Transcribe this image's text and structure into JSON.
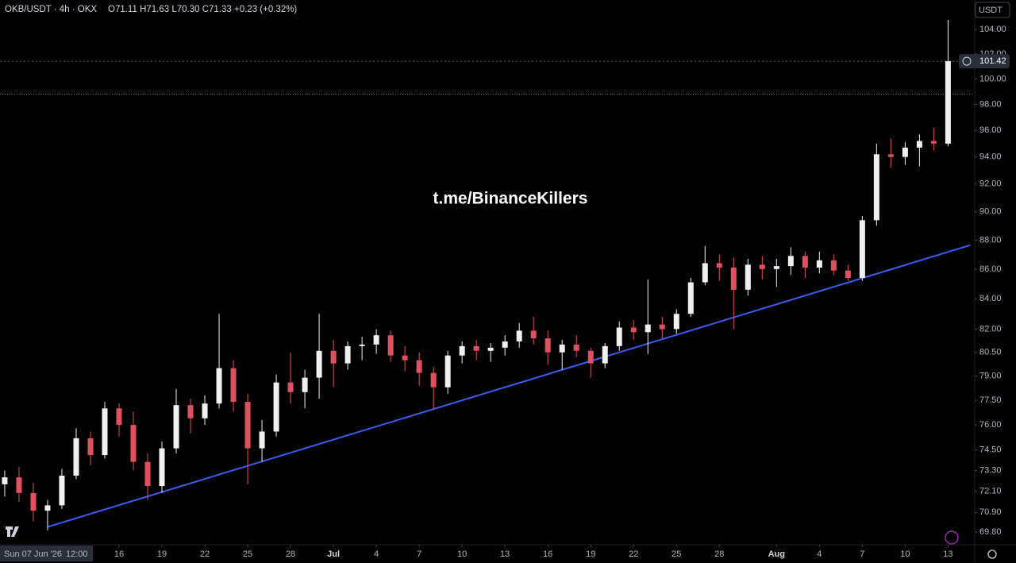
{
  "chart_data": {
    "type": "candlestick",
    "title": "OKB/USDT · 4h · OKX",
    "subtitle": "O71.11 H71.63 L70.30 C71.33 +0.23 (+0.32%)",
    "watermark": "t.me/BinanceKillers",
    "currency": "USDT",
    "cursor_date": "Sun 07 Jun '26",
    "cursor_time": "12:00",
    "up_color": "#f0f0f0",
    "down_color": "#e0505f",
    "log_scale": true,
    "x": [
      1,
      2,
      3,
      4,
      5,
      6,
      7,
      8,
      9,
      10,
      11,
      12,
      13,
      14,
      15,
      16,
      17,
      18,
      19,
      20,
      21,
      22,
      23,
      24,
      25,
      26,
      27,
      28,
      29,
      30,
      31,
      32,
      33,
      34,
      35,
      36,
      37,
      38,
      39,
      40,
      41,
      42,
      43,
      44,
      45,
      46,
      47,
      48,
      49,
      50,
      51,
      52,
      53,
      54,
      55,
      56,
      57,
      58,
      59,
      60,
      61,
      62,
      63,
      64,
      65,
      66,
      67
    ],
    "open": [
      72.5,
      72.9,
      72.0,
      71.0,
      71.3,
      73.0,
      75.2,
      74.2,
      77.0,
      76.0,
      73.8,
      72.4,
      74.6,
      77.2,
      76.4,
      77.3,
      79.5,
      77.4,
      74.6,
      75.6,
      78.6,
      78.0,
      78.9,
      80.6,
      79.8,
      80.9,
      81.0,
      81.6,
      80.3,
      80.0,
      79.2,
      78.3,
      80.3,
      80.9,
      80.6,
      80.8,
      81.2,
      81.9,
      81.4,
      80.5,
      81.0,
      80.6,
      79.8,
      80.9,
      82.1,
      81.8,
      82.3,
      82.0,
      83.0,
      85.1,
      86.4,
      86.1,
      84.6,
      86.3,
      86.0,
      86.2,
      86.9,
      86.1,
      86.6,
      85.9,
      85.4,
      89.4,
      94.2,
      94.0,
      94.7,
      95.2,
      95.0
    ],
    "high": [
      73.3,
      73.5,
      72.6,
      71.6,
      73.4,
      75.8,
      75.6,
      77.4,
      77.3,
      76.8,
      74.3,
      75.0,
      78.2,
      77.6,
      77.8,
      83.0,
      80.0,
      77.9,
      76.3,
      79.1,
      80.5,
      79.4,
      83.0,
      81.3,
      81.2,
      81.5,
      82.0,
      81.9,
      80.9,
      80.5,
      79.6,
      80.6,
      81.2,
      81.3,
      81.1,
      81.6,
      82.4,
      82.8,
      81.9,
      81.3,
      81.6,
      80.8,
      81.1,
      82.5,
      82.6,
      85.3,
      82.8,
      83.3,
      85.4,
      87.6,
      87.0,
      86.8,
      86.7,
      86.9,
      86.7,
      87.5,
      87.2,
      87.2,
      87.0,
      86.3,
      89.7,
      95.0,
      95.4,
      95.1,
      95.7,
      96.2,
      104.8
    ],
    "low": [
      71.8,
      71.5,
      70.4,
      69.9,
      71.1,
      72.8,
      73.6,
      74.0,
      75.3,
      73.3,
      71.6,
      72.0,
      74.3,
      75.5,
      76.0,
      77.0,
      76.8,
      72.5,
      73.8,
      75.3,
      77.3,
      77.0,
      77.6,
      78.3,
      79.4,
      80.0,
      80.4,
      79.9,
      79.3,
      78.4,
      76.9,
      77.9,
      79.8,
      80.0,
      79.9,
      80.3,
      80.8,
      81.0,
      79.7,
      79.4,
      80.2,
      78.9,
      79.5,
      80.6,
      81.3,
      80.4,
      81.4,
      81.7,
      82.8,
      84.9,
      85.2,
      82.0,
      84.2,
      85.3,
      84.8,
      85.6,
      85.4,
      85.7,
      85.6,
      85.2,
      85.2,
      89.0,
      93.2,
      93.4,
      93.3,
      94.5,
      94.8
    ],
    "close": [
      72.9,
      72.0,
      71.0,
      71.3,
      73.0,
      75.2,
      74.2,
      77.0,
      76.0,
      73.8,
      72.4,
      74.6,
      77.2,
      76.4,
      77.3,
      79.5,
      77.4,
      74.6,
      75.6,
      78.6,
      78.0,
      78.9,
      80.6,
      79.8,
      80.9,
      81.0,
      81.6,
      80.3,
      80.0,
      79.2,
      78.3,
      80.3,
      80.9,
      80.6,
      80.8,
      81.2,
      81.9,
      81.4,
      80.5,
      81.0,
      80.6,
      79.8,
      80.9,
      82.1,
      81.8,
      82.3,
      82.0,
      83.0,
      85.1,
      86.4,
      86.1,
      84.6,
      86.3,
      86.0,
      86.2,
      86.9,
      86.1,
      86.6,
      85.9,
      85.4,
      89.4,
      94.2,
      94.0,
      94.7,
      95.2,
      95.0,
      101.42
    ],
    "xlim": [
      0.67,
      68.7
    ],
    "xticks": [
      {
        "value": 9,
        "label": "16"
      },
      {
        "value": 12,
        "label": "19"
      },
      {
        "value": 15,
        "label": "22"
      },
      {
        "value": 18,
        "label": "25"
      },
      {
        "value": 21,
        "label": "28"
      },
      {
        "value": 24,
        "label": "Jul"
      },
      {
        "value": 27,
        "label": "4"
      },
      {
        "value": 30,
        "label": "7"
      },
      {
        "value": 33,
        "label": "10"
      },
      {
        "value": 36,
        "label": "13"
      },
      {
        "value": 39,
        "label": "16"
      },
      {
        "value": 42,
        "label": "19"
      },
      {
        "value": 45,
        "label": "22"
      },
      {
        "value": 48,
        "label": "25"
      },
      {
        "value": 51,
        "label": "28"
      },
      {
        "value": 55,
        "label": "Aug"
      },
      {
        "value": 58,
        "label": "4"
      },
      {
        "value": 61,
        "label": "7"
      },
      {
        "value": 64,
        "label": "10"
      },
      {
        "value": 67,
        "label": "13"
      }
    ],
    "ylim": [
      69.15,
      105.0
    ],
    "yticks": [
      {
        "value": 104,
        "label": "104.00"
      },
      {
        "value": 102,
        "label": "102.00"
      },
      {
        "value": 100,
        "label": "100.00"
      },
      {
        "value": 98,
        "label": "98.00"
      },
      {
        "value": 96,
        "label": "96.00"
      },
      {
        "value": 94,
        "label": "94.00"
      },
      {
        "value": 92,
        "label": "92.00"
      },
      {
        "value": 90,
        "label": "90.00"
      },
      {
        "value": 88,
        "label": "88.00"
      },
      {
        "value": 86,
        "label": "86.00"
      },
      {
        "value": 84,
        "label": "84.00"
      },
      {
        "value": 82,
        "label": "82.00"
      },
      {
        "value": 80.5,
        "label": "80.50"
      },
      {
        "value": 79,
        "label": "79.00"
      },
      {
        "value": 77.5,
        "label": "77.50"
      },
      {
        "value": 76,
        "label": "76.00"
      },
      {
        "value": 74.5,
        "label": "74.50"
      },
      {
        "value": 73.3,
        "label": "73.30"
      },
      {
        "value": 72.1,
        "label": "72.10"
      },
      {
        "value": 70.9,
        "label": "70.90"
      },
      {
        "value": 69.8,
        "label": "69.80"
      }
    ],
    "last_price": 101.42,
    "level": 98.8,
    "trendline": {
      "color": "#3a5cf0",
      "x": [
        4,
        68.56
      ],
      "y": [
        70.09,
        87.65
      ]
    }
  }
}
